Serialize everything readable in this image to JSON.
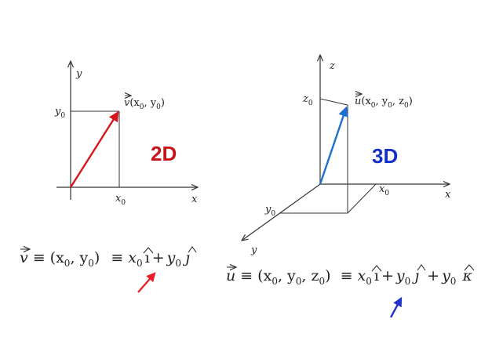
{
  "colors": {
    "background": "#ffffff",
    "axis": "#333333",
    "vector_2d": "#d9151b",
    "vector_3d": "#1f6fd1",
    "label_2d": "#c8131a",
    "label_3d": "#1530c8",
    "arrow_2d": "#e8202a",
    "arrow_3d": "#2233c8"
  },
  "diagram_2d": {
    "axis_x": "x",
    "axis_y": "y",
    "tick_x": "x",
    "tick_x_sub": "0",
    "tick_y": "y",
    "tick_y_sub": "0",
    "vector_name": "v",
    "coord_open": "(x",
    "coord_sep": ", y",
    "coord_close": ")",
    "sub0": "0",
    "dimension_label": "2D"
  },
  "diagram_3d": {
    "axis_x": "x",
    "axis_y": "y",
    "axis_z": "z",
    "tick_x": "x",
    "tick_y": "y",
    "tick_z": "z",
    "sub0": "0",
    "vector_name": "u",
    "coord_open": "(x",
    "coord_sep1": ", y",
    "coord_sep2": ", z",
    "coord_close": ")",
    "dimension_label": "3D"
  },
  "formula_2d": {
    "vec": "v",
    "equiv": "≡",
    "open": "(x",
    "sub0": "0",
    "sep": ", y",
    "close": ")",
    "x": "x",
    "i": "ı",
    "plus": "+",
    "y": "y",
    "j": "ȷ"
  },
  "formula_3d": {
    "vec": "u",
    "equiv": "≡",
    "open": "(x",
    "sub0": "0",
    "sep1": ", y",
    "sep2": ", z",
    "close": ")",
    "x": "x",
    "i": "ı",
    "plus": "+",
    "y": "y",
    "j": "ȷ",
    "k": "κ"
  }
}
